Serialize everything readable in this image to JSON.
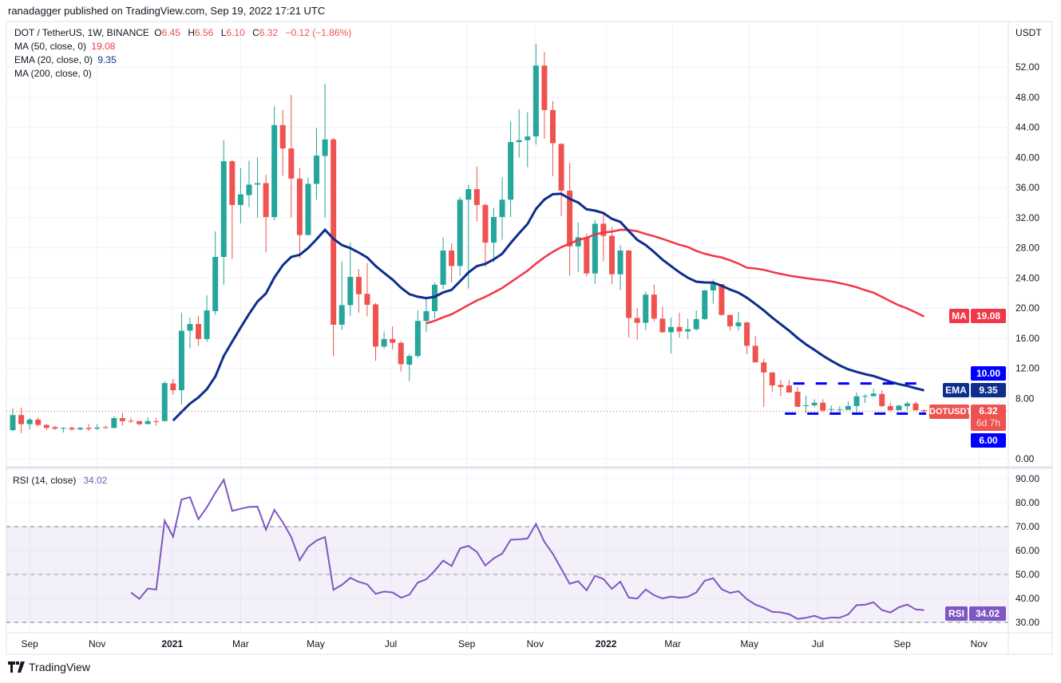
{
  "header": {
    "published": "ranadagger published on TradingView.com, Sep 19, 2022 17:21 UTC"
  },
  "legend": {
    "symbol": "DOT / TetherUS, 1W, BINANCE",
    "o_label": "O",
    "o": "6.45",
    "h_label": "H",
    "h": "6.56",
    "l_label": "L",
    "l": "6.10",
    "c_label": "C",
    "c": "6.32",
    "change": "−0.12 (−1.86%)",
    "ma50_label": "MA (50, close, 0)",
    "ma50_value": "19.08",
    "ema_label": "EMA (20, close, 0)",
    "ema_value": "9.35",
    "ma200_label": "MA (200, close, 0)"
  },
  "price_axis": {
    "unit": "USDT",
    "ticks": [
      {
        "v": 52,
        "label": "52.00"
      },
      {
        "v": 48,
        "label": "48.00"
      },
      {
        "v": 44,
        "label": "44.00"
      },
      {
        "v": 40,
        "label": "40.00"
      },
      {
        "v": 36,
        "label": "36.00"
      },
      {
        "v": 32,
        "label": "32.00"
      },
      {
        "v": 28,
        "label": "28.00"
      },
      {
        "v": 24,
        "label": "24.00"
      },
      {
        "v": 20,
        "label": "20.00"
      },
      {
        "v": 16,
        "label": "16.00"
      },
      {
        "v": 12,
        "label": "12.00"
      },
      {
        "v": 8,
        "label": "8.00"
      },
      {
        "v": 0,
        "label": "0.00"
      }
    ]
  },
  "axis_labels": {
    "ma_tag": "MA",
    "ma_value": "19.08",
    "ema_tag": "EMA",
    "ema_value": "9.35",
    "resistance": "10.00",
    "support": "6.00",
    "symbol_tag": "DOTUSDT",
    "symbol_value": "6.32",
    "countdown": "6d 7h"
  },
  "rsi": {
    "label": "RSI (14, close)",
    "value": "34.02",
    "tag": "RSI",
    "ticks": [
      {
        "v": 90,
        "label": "90.00"
      },
      {
        "v": 80,
        "label": "80.00"
      },
      {
        "v": 70,
        "label": "70.00"
      },
      {
        "v": 60,
        "label": "60.00"
      },
      {
        "v": 50,
        "label": "50.00"
      },
      {
        "v": 40,
        "label": "40.00"
      },
      {
        "v": 30,
        "label": "30.00"
      }
    ],
    "bands": [
      70,
      50,
      30
    ]
  },
  "time_axis": [
    {
      "label": "Sep",
      "week": 2.0
    },
    {
      "label": "Nov",
      "week": 10.0
    },
    {
      "label": "2021",
      "week": 18.9,
      "major": true
    },
    {
      "label": "Mar",
      "week": 27.0
    },
    {
      "label": "May",
      "week": 35.9
    },
    {
      "label": "Jul",
      "week": 44.8
    },
    {
      "label": "Sep",
      "week": 53.8
    },
    {
      "label": "Nov",
      "week": 61.9
    },
    {
      "label": "2022",
      "week": 70.3,
      "major": true
    },
    {
      "label": "Mar",
      "week": 78.2
    },
    {
      "label": "May",
      "week": 87.3
    },
    {
      "label": "Jul",
      "week": 95.4
    },
    {
      "label": "Sep",
      "week": 105.4
    },
    {
      "label": "Nov",
      "week": 114.5
    }
  ],
  "footer": {
    "brand": "TradingView"
  },
  "colors": {
    "up": "#26a69a",
    "down": "#ef5350",
    "ema": "#0d2e8c",
    "ma": "#f23645",
    "level": "#0000ff",
    "rsi": "#7e57c2",
    "grid": "#f0f3fa"
  },
  "chart_data": {
    "type": "candlestick",
    "title": "DOT / TetherUS, 1W, BINANCE",
    "ylabel": "USDT",
    "ylim": [
      -1.06,
      58.05
    ],
    "rsi_ylim": [
      26,
      94
    ],
    "fields": [
      "open",
      "high",
      "low",
      "close"
    ],
    "candles": [
      [
        3.8,
        6.7,
        3.7,
        5.8
      ],
      [
        5.8,
        6.8,
        3.4,
        4.6
      ],
      [
        4.6,
        5.4,
        3.9,
        5.2
      ],
      [
        5.2,
        5.5,
        4.3,
        4.5
      ],
      [
        4.5,
        4.6,
        3.8,
        4.1
      ],
      [
        4.2,
        4.4,
        3.8,
        4.0
      ],
      [
        4.0,
        4.2,
        3.5,
        4.1
      ],
      [
        4.1,
        4.3,
        3.7,
        3.9
      ],
      [
        3.9,
        4.2,
        3.8,
        4.1
      ],
      [
        4.1,
        4.6,
        3.7,
        3.95
      ],
      [
        4.0,
        4.6,
        3.8,
        4.15
      ],
      [
        4.2,
        4.4,
        4.0,
        4.1
      ],
      [
        4.1,
        5.7,
        4.0,
        5.4
      ],
      [
        5.4,
        6.1,
        4.4,
        5.0
      ],
      [
        5.05,
        5.45,
        4.75,
        4.95
      ],
      [
        5.0,
        5.0,
        4.4,
        4.6
      ],
      [
        4.6,
        5.5,
        4.6,
        5.0
      ],
      [
        5.0,
        5.45,
        4.4,
        4.95
      ],
      [
        5.0,
        10.3,
        5.0,
        10.05
      ],
      [
        10.0,
        10.6,
        8.5,
        9.1
      ],
      [
        9.1,
        19.4,
        7.2,
        17.0
      ],
      [
        17.0,
        18.75,
        14.65,
        17.9
      ],
      [
        17.9,
        19.0,
        15.0,
        15.9
      ],
      [
        15.9,
        21.7,
        15.5,
        19.7
      ],
      [
        19.6,
        30.2,
        19.1,
        26.8
      ],
      [
        26.8,
        42.3,
        23.1,
        39.5
      ],
      [
        39.5,
        39.7,
        26.5,
        33.7
      ],
      [
        33.7,
        38.6,
        31.25,
        35.1
      ],
      [
        35.0,
        39.6,
        33.4,
        36.4
      ],
      [
        36.4,
        40.0,
        32.0,
        36.6
      ],
      [
        36.6,
        37.7,
        27.4,
        32.1
      ],
      [
        32.1,
        46.8,
        31.7,
        44.3
      ],
      [
        44.3,
        46.3,
        37.6,
        41.2
      ],
      [
        41.2,
        48.3,
        32.0,
        37.2
      ],
      [
        37.2,
        38.6,
        26.6,
        29.7
      ],
      [
        29.7,
        37.3,
        29.7,
        36.5
      ],
      [
        36.5,
        43.9,
        34.4,
        40.25
      ],
      [
        40.2,
        49.8,
        32.0,
        42.4
      ],
      [
        42.4,
        42.6,
        13.6,
        17.8
      ],
      [
        17.8,
        26.2,
        17.1,
        20.4
      ],
      [
        20.4,
        28.7,
        19.0,
        24.15
      ],
      [
        24.15,
        25.2,
        19.4,
        21.85
      ],
      [
        21.9,
        26.0,
        18.9,
        20.45
      ],
      [
        20.5,
        20.7,
        13.0,
        14.9
      ],
      [
        14.9,
        16.9,
        14.6,
        15.9
      ],
      [
        15.9,
        17.6,
        14.5,
        15.4
      ],
      [
        15.4,
        15.6,
        11.6,
        12.55
      ],
      [
        12.5,
        13.9,
        10.3,
        13.65
      ],
      [
        13.65,
        19.7,
        13.4,
        18.3
      ],
      [
        18.3,
        21.5,
        16.8,
        19.6
      ],
      [
        19.6,
        23.4,
        18.6,
        23.1
      ],
      [
        23.1,
        29.4,
        22.5,
        27.65
      ],
      [
        27.65,
        28.6,
        23.4,
        25.6
      ],
      [
        25.6,
        34.8,
        24.3,
        34.4
      ],
      [
        34.4,
        36.4,
        22.6,
        35.8
      ],
      [
        35.8,
        38.8,
        31.5,
        33.7
      ],
      [
        33.7,
        33.9,
        25.5,
        28.7
      ],
      [
        28.7,
        33.3,
        26.1,
        32.1
      ],
      [
        32.1,
        37.4,
        29.1,
        34.4
      ],
      [
        34.4,
        44.8,
        32.1,
        42.05
      ],
      [
        42.05,
        46.4,
        40.0,
        42.3
      ],
      [
        42.3,
        46.0,
        38.7,
        42.8
      ],
      [
        42.8,
        55.1,
        41.7,
        52.2
      ],
      [
        52.2,
        54.0,
        42.5,
        46.3
      ],
      [
        46.3,
        47.5,
        37.5,
        41.9
      ],
      [
        41.8,
        41.9,
        32.2,
        35.6
      ],
      [
        35.6,
        39.3,
        24.3,
        28.2
      ],
      [
        28.2,
        31.4,
        24.8,
        29.4
      ],
      [
        29.4,
        29.9,
        24.2,
        24.6
      ],
      [
        24.6,
        31.7,
        23.2,
        31.2
      ],
      [
        31.2,
        32.7,
        26.2,
        29.6
      ],
      [
        29.6,
        30.8,
        23.2,
        24.5
      ],
      [
        24.5,
        28.4,
        22.4,
        27.65
      ],
      [
        27.65,
        27.7,
        16.1,
        18.7
      ],
      [
        18.7,
        20.0,
        15.8,
        18.05
      ],
      [
        18.05,
        22.2,
        17.1,
        21.8
      ],
      [
        21.8,
        23.1,
        18.2,
        18.6
      ],
      [
        18.6,
        20.2,
        16.7,
        16.8
      ],
      [
        16.8,
        18.75,
        14.0,
        17.5
      ],
      [
        17.5,
        19.4,
        16.1,
        16.9
      ],
      [
        16.9,
        18.6,
        15.9,
        17.2
      ],
      [
        17.2,
        19.7,
        17.0,
        18.55
      ],
      [
        18.55,
        22.45,
        18.4,
        22.35
      ],
      [
        22.35,
        23.8,
        20.6,
        23.2
      ],
      [
        23.2,
        23.2,
        19.0,
        19.1
      ],
      [
        19.1,
        19.1,
        17.0,
        17.6
      ],
      [
        17.6,
        19.5,
        17.0,
        18.1
      ],
      [
        18.1,
        18.2,
        13.9,
        15.0
      ],
      [
        15.0,
        16.3,
        12.8,
        12.8
      ],
      [
        12.8,
        13.3,
        6.9,
        11.46
      ],
      [
        11.46,
        11.5,
        8.9,
        9.74
      ],
      [
        9.8,
        10.5,
        8.3,
        9.52
      ],
      [
        9.74,
        10.5,
        8.8,
        8.8
      ],
      [
        8.9,
        9.5,
        6.9,
        6.9
      ],
      [
        7.0,
        8.4,
        6.1,
        7.1
      ],
      [
        7.1,
        7.9,
        6.85,
        7.45
      ],
      [
        7.45,
        7.9,
        6.2,
        6.4
      ],
      [
        6.5,
        7.1,
        6.1,
        6.6
      ],
      [
        6.45,
        7.0,
        5.9,
        6.55
      ],
      [
        6.5,
        7.6,
        6.5,
        7.0
      ],
      [
        7.0,
        8.8,
        6.2,
        8.3
      ],
      [
        8.3,
        8.6,
        7.4,
        8.35
      ],
      [
        8.3,
        9.3,
        8.3,
        8.66
      ],
      [
        8.6,
        9.1,
        6.85,
        7.0
      ],
      [
        7.0,
        7.45,
        6.3,
        6.45
      ],
      [
        6.45,
        7.2,
        6.45,
        7.05
      ],
      [
        7.0,
        7.6,
        6.4,
        7.35
      ],
      [
        7.35,
        7.6,
        6.4,
        6.45
      ],
      [
        6.45,
        6.56,
        6.1,
        6.32
      ]
    ],
    "indicators": {
      "ema_period": 20,
      "ma_period": 50,
      "rsi_period": 14
    },
    "levels": [
      {
        "value": 10,
        "label": "10.00",
        "from_week": 92.5,
        "to_week": 115
      },
      {
        "value": 6,
        "label": "6.00",
        "from_week": 91.5,
        "to_week": 112
      }
    ],
    "last_price": 6.32
  }
}
